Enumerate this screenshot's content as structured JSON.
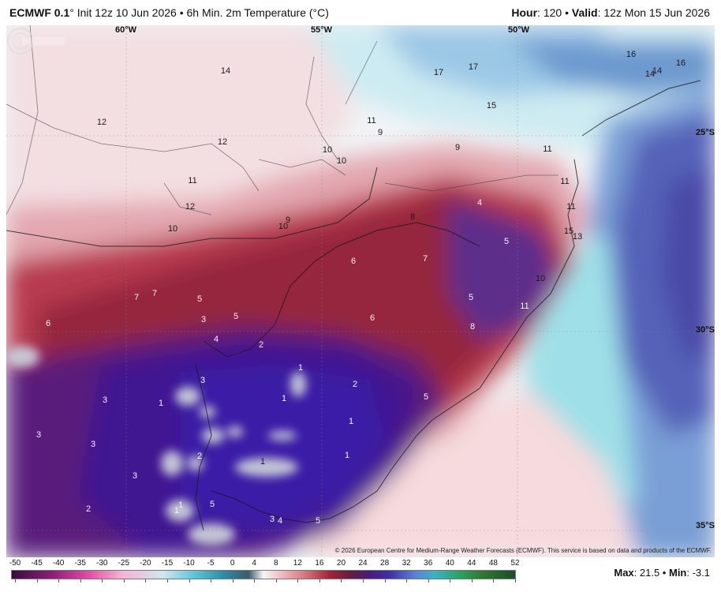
{
  "header": {
    "model": "ECMWF 0.1",
    "init": "° Init 12z 10 Jun 2026 • 6h Min. 2m Temperature (°C)",
    "hour_label": "Hour",
    "hour_value": ": 120 •",
    "valid_label": "Valid",
    "valid_value": ": 12z Mon 15 Jun 2026"
  },
  "map": {
    "longitudes": [
      "60°W",
      "55°W",
      "50°W"
    ],
    "latitudes": [
      "25°S",
      "30°S",
      "35°S"
    ],
    "values": [
      {
        "t": "17"
      },
      {
        "t": "17"
      },
      {
        "t": "16"
      },
      {
        "t": "16"
      },
      {
        "t": "14"
      },
      {
        "t": "14"
      },
      {
        "t": "15"
      },
      {
        "t": "14"
      },
      {
        "t": "12"
      },
      {
        "t": "12"
      },
      {
        "t": "11"
      },
      {
        "t": "12"
      },
      {
        "t": "10"
      },
      {
        "t": "11"
      },
      {
        "t": "9"
      },
      {
        "t": "10"
      },
      {
        "t": "10"
      },
      {
        "t": "9"
      },
      {
        "t": "10"
      },
      {
        "t": "11"
      },
      {
        "t": "9"
      },
      {
        "t": "11"
      },
      {
        "t": "11"
      },
      {
        "t": "13"
      },
      {
        "t": "8"
      },
      {
        "t": "4"
      },
      {
        "t": "5"
      },
      {
        "t": "10"
      },
      {
        "t": "15"
      },
      {
        "t": "6"
      },
      {
        "t": "7"
      },
      {
        "t": "7"
      },
      {
        "t": "7"
      },
      {
        "t": "5"
      },
      {
        "t": "3"
      },
      {
        "t": "5"
      },
      {
        "t": "6"
      },
      {
        "t": "5"
      },
      {
        "t": "11"
      },
      {
        "t": "8"
      },
      {
        "t": "6"
      },
      {
        "t": "4"
      },
      {
        "t": "2"
      },
      {
        "t": "1"
      },
      {
        "t": "3"
      },
      {
        "t": "2"
      },
      {
        "t": "3"
      },
      {
        "t": "1"
      },
      {
        "t": "1"
      },
      {
        "t": "5"
      },
      {
        "t": "3"
      },
      {
        "t": "1"
      },
      {
        "t": "3"
      },
      {
        "t": "2"
      },
      {
        "t": "1"
      },
      {
        "t": "1"
      },
      {
        "t": "3"
      },
      {
        "t": "2"
      },
      {
        "t": "5"
      },
      {
        "t": "1"
      },
      {
        "t": "3"
      },
      {
        "t": "4"
      },
      {
        "t": "5"
      },
      {
        "t": "1"
      }
    ],
    "copyright": "© 2026 European Centre for Medium-Range Weather Forecasts (ECMWF). This service is based on data and products of the ECMWF."
  },
  "scale": {
    "labels": [
      "-50",
      "-45",
      "-40",
      "-35",
      "-30",
      "-25",
      "-20",
      "-15",
      "-10",
      "-5",
      "0",
      "4",
      "8",
      "12",
      "16",
      "20",
      "24",
      "28",
      "32",
      "36",
      "40",
      "44",
      "48",
      "52"
    ]
  },
  "stats": {
    "max_label": "Max",
    "max_value": ": 21.5 •",
    "min_label": "Min",
    "min_value": ": -3.1"
  }
}
